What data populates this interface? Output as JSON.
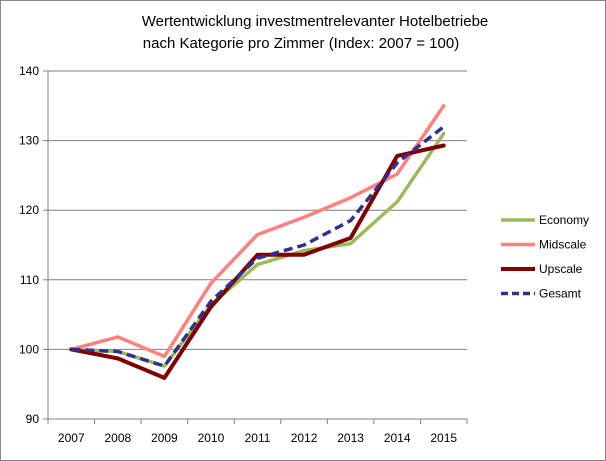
{
  "chart_data": {
    "type": "line",
    "title_lines": [
      "Wertentwicklung  investmentrelevanter Hotelbetriebe",
      "nach Kategorie pro Zimmer (Index: 2007 = 100)"
    ],
    "xlabel": "",
    "ylabel": "",
    "categories": [
      "2007",
      "2008",
      "2009",
      "2010",
      "2011",
      "2012",
      "2013",
      "2014",
      "2015"
    ],
    "ylim": [
      90,
      140
    ],
    "yticks": [
      90,
      100,
      110,
      120,
      130,
      140
    ],
    "grid": "horizontal",
    "legend_position": "right",
    "series": [
      {
        "name": "Economy",
        "color": "#9bbb59",
        "dash": "solid",
        "values": [
          100,
          99.7,
          97.6,
          106.4,
          112.2,
          114.2,
          115.2,
          121.2,
          131.0
        ]
      },
      {
        "name": "Midscale",
        "color": "#ff8080",
        "dash": "solid",
        "values": [
          100,
          101.8,
          99.0,
          109.5,
          116.5,
          119.0,
          121.8,
          125.2,
          135.0
        ]
      },
      {
        "name": "Upscale",
        "color": "#800000",
        "dash": "solid",
        "values": [
          100,
          98.7,
          95.9,
          106.1,
          113.6,
          113.6,
          116.0,
          127.8,
          129.3
        ]
      },
      {
        "name": "Gesamt",
        "color": "#2e3192",
        "dash": "dashed",
        "values": [
          100,
          99.7,
          97.6,
          106.9,
          113.1,
          115.0,
          118.5,
          126.8,
          132.0
        ]
      }
    ]
  }
}
